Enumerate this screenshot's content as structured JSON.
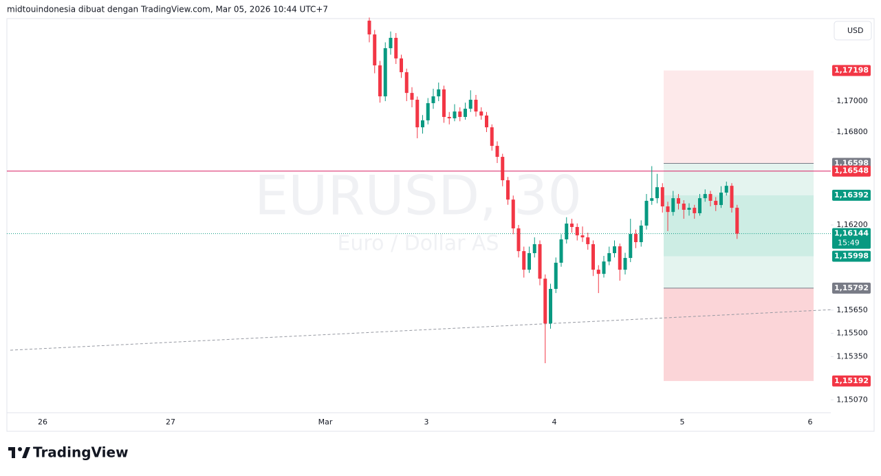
{
  "header": "midtouindonesia dibuat dengan TradingView.com, Mar 05, 2026 10:44 UTC+7",
  "logo": "TradingView",
  "chart_data": {
    "type": "candlestick",
    "watermark": "EURUSD, 30",
    "watermark_sub": "Euro / Dollar AS",
    "currency": "USD",
    "up_color": "#089981",
    "down_color": "#f23645",
    "ylim": [
      1.14987,
      1.17529
    ],
    "yticks": [
      {
        "value": 1.17,
        "label": "1,17000"
      },
      {
        "value": 1.168,
        "label": "1,16800"
      },
      {
        "value": 1.162,
        "label": "1,16200"
      },
      {
        "value": 1.1565,
        "label": "1,15650"
      },
      {
        "value": 1.155,
        "label": "1,15500"
      },
      {
        "value": 1.1535,
        "label": "1,15350"
      },
      {
        "value": 1.1507,
        "label": "1,15070"
      }
    ],
    "xticks": [
      "26",
      "27",
      "Mar",
      "3",
      "4",
      "5",
      "6"
    ],
    "candles": [
      [
        1.1752,
        1.1754,
        1.1738,
        1.17431
      ],
      [
        1.17431,
        1.1746,
        1.1718,
        1.17231
      ],
      [
        1.17231,
        1.1726,
        1.1699,
        1.17031
      ],
      [
        1.17031,
        1.1738,
        1.17,
        1.17342
      ],
      [
        1.17342,
        1.1745,
        1.173,
        1.17409
      ],
      [
        1.17409,
        1.1744,
        1.1724,
        1.17276
      ],
      [
        1.17276,
        1.173,
        1.1715,
        1.17187
      ],
      [
        1.17187,
        1.1721,
        1.17,
        1.17053
      ],
      [
        1.17053,
        1.1709,
        1.1696,
        1.17009
      ],
      [
        1.17009,
        1.1703,
        1.1676,
        1.16831
      ],
      [
        1.16831,
        1.1691,
        1.1679,
        1.16876
      ],
      [
        1.16876,
        1.1702,
        1.1685,
        1.16987
      ],
      [
        1.16987,
        1.1708,
        1.1695,
        1.17031
      ],
      [
        1.17031,
        1.1712,
        1.17,
        1.17076
      ],
      [
        1.17076,
        1.171,
        1.1686,
        1.16898
      ],
      [
        1.16898,
        1.1693,
        1.1685,
        1.16889
      ],
      [
        1.16889,
        1.1698,
        1.1687,
        1.16933
      ],
      [
        1.16933,
        1.1696,
        1.1687,
        1.16898
      ],
      [
        1.16898,
        1.1699,
        1.1688,
        1.16951
      ],
      [
        1.16951,
        1.1707,
        1.1693,
        1.17009
      ],
      [
        1.17009,
        1.1704,
        1.169,
        1.16933
      ],
      [
        1.16933,
        1.1696,
        1.1688,
        1.16907
      ],
      [
        1.16907,
        1.1693,
        1.168,
        1.16831
      ],
      [
        1.16831,
        1.1685,
        1.1668,
        1.16711
      ],
      [
        1.16711,
        1.1674,
        1.166,
        1.1664
      ],
      [
        1.1664,
        1.1666,
        1.1645,
        1.16489
      ],
      [
        1.16489,
        1.1651,
        1.1633,
        1.16364
      ],
      [
        1.16364,
        1.1639,
        1.1614,
        1.16178
      ],
      [
        1.16178,
        1.162,
        1.1599,
        1.16031
      ],
      [
        1.16031,
        1.1606,
        1.1586,
        1.15911
      ],
      [
        1.15911,
        1.1606,
        1.1589,
        1.16018
      ],
      [
        1.16018,
        1.1612,
        1.1599,
        1.16076
      ],
      [
        1.16076,
        1.161,
        1.1581,
        1.15853
      ],
      [
        1.15853,
        1.1588,
        1.15307,
        1.15564
      ],
      [
        1.15564,
        1.1582,
        1.1553,
        1.15787
      ],
      [
        1.15787,
        1.1599,
        1.1576,
        1.15956
      ],
      [
        1.15956,
        1.1614,
        1.1593,
        1.16107
      ],
      [
        1.16107,
        1.1625,
        1.1608,
        1.16209
      ],
      [
        1.16209,
        1.1624,
        1.1615,
        1.16187
      ],
      [
        1.16187,
        1.1621,
        1.161,
        1.16133
      ],
      [
        1.16133,
        1.1619,
        1.1609,
        1.1612
      ],
      [
        1.1612,
        1.1615,
        1.1604,
        1.16076
      ],
      [
        1.16076,
        1.161,
        1.1587,
        1.15911
      ],
      [
        1.15911,
        1.1594,
        1.1576,
        1.15884
      ],
      [
        1.15884,
        1.16,
        1.1586,
        1.15964
      ],
      [
        1.15964,
        1.1606,
        1.1594,
        1.16018
      ],
      [
        1.16018,
        1.161,
        1.1599,
        1.16062
      ],
      [
        1.16062,
        1.1608,
        1.1584,
        1.15911
      ],
      [
        1.15911,
        1.1602,
        1.1588,
        1.15987
      ],
      [
        1.15987,
        1.1624,
        1.1596,
        1.16142
      ],
      [
        1.16142,
        1.1617,
        1.1605,
        1.16089
      ],
      [
        1.16089,
        1.1623,
        1.1606,
        1.16196
      ],
      [
        1.16196,
        1.164,
        1.1617,
        1.16356
      ],
      [
        1.16356,
        1.1658,
        1.1633,
        1.16373
      ],
      [
        1.16373,
        1.1653,
        1.1634,
        1.16444
      ],
      [
        1.16444,
        1.1647,
        1.1628,
        1.1632
      ],
      [
        1.1632,
        1.1635,
        1.1616,
        1.16284
      ],
      [
        1.16284,
        1.1642,
        1.1626,
        1.16373
      ],
      [
        1.16373,
        1.164,
        1.163,
        1.16338
      ],
      [
        1.16338,
        1.1636,
        1.1624,
        1.16298
      ],
      [
        1.16298,
        1.1634,
        1.1626,
        1.16311
      ],
      [
        1.16311,
        1.1633,
        1.1624,
        1.16276
      ],
      [
        1.16276,
        1.164,
        1.1626,
        1.16373
      ],
      [
        1.16373,
        1.1643,
        1.1635,
        1.164
      ],
      [
        1.164,
        1.1642,
        1.1632,
        1.16356
      ],
      [
        1.16356,
        1.1638,
        1.1629,
        1.16329
      ],
      [
        1.16329,
        1.1645,
        1.1631,
        1.16409
      ],
      [
        1.16409,
        1.1648,
        1.1639,
        1.16453
      ],
      [
        1.16453,
        1.1647,
        1.1628,
        1.16311
      ],
      [
        1.16311,
        1.1633,
        1.1611,
        1.16144
      ]
    ],
    "price_levels": [
      {
        "value": 1.17198,
        "label": "1,17198",
        "color": "#f23645"
      },
      {
        "value": 1.16598,
        "label": "1,16598",
        "color": "#787b86"
      },
      {
        "value": 1.16548,
        "label": "1,16548",
        "color": "#f23645"
      },
      {
        "value": 1.16392,
        "label": "1,16392",
        "color": "#089981"
      },
      {
        "value": 1.16144,
        "label": "1,16144",
        "color": "#089981"
      },
      {
        "value": 1.15998,
        "label": "1,15998",
        "color": "#089981"
      },
      {
        "value": 1.15792,
        "label": "1,15792",
        "color": "#787b86"
      },
      {
        "value": 1.15192,
        "label": "1,15192",
        "color": "#f23645"
      }
    ],
    "countdown": "15:49",
    "trendline": [
      1.15391,
      1.15653
    ]
  }
}
